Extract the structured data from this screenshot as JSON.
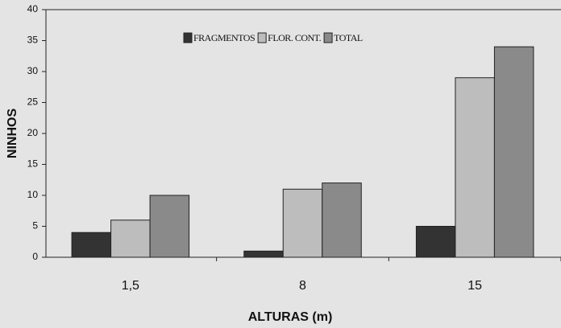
{
  "chart_data": {
    "type": "bar",
    "x_label": "ALTURAS (m)",
    "y_label": "NINHOS",
    "categories": [
      "1,5",
      "8",
      "15"
    ],
    "series": [
      {
        "name": "FRAGMENTOS",
        "color": "#333333",
        "values": [
          4,
          1,
          5
        ]
      },
      {
        "name": "FLOR. CONT.",
        "color": "#bdbdbd",
        "values": [
          6,
          11,
          29
        ]
      },
      {
        "name": "TOTAL",
        "color": "#8a8a8a",
        "values": [
          10,
          12,
          34
        ]
      }
    ],
    "ylim": [
      0,
      40
    ],
    "yticks": [
      0,
      5,
      10,
      15,
      20,
      25,
      30,
      35,
      40
    ],
    "legend": "top"
  }
}
